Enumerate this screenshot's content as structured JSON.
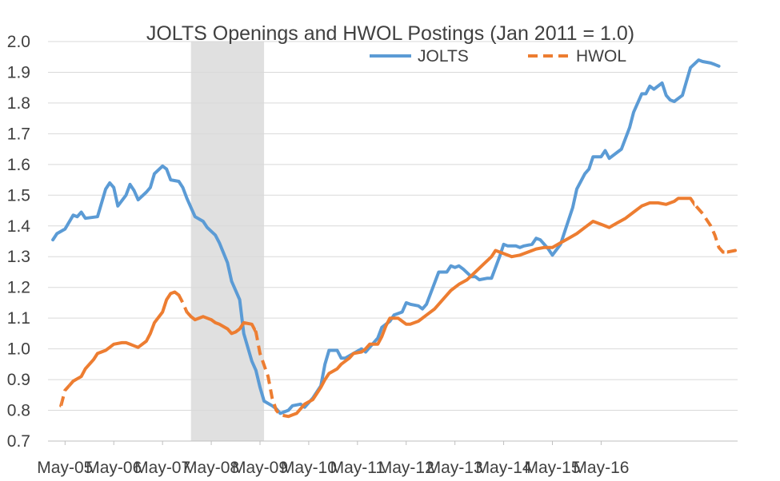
{
  "chart_data": {
    "type": "line",
    "title": "JOLTS Openings and HWOL Postings (Jan 2011 = 1.0)",
    "xlabel": "",
    "ylabel": "",
    "ylim": [
      0.7,
      2.0
    ],
    "y_ticks": [
      "0.7",
      "0.8",
      "0.9",
      "1.0",
      "1.1",
      "1.2",
      "1.3",
      "1.4",
      "1.5",
      "1.6",
      "1.7",
      "1.8",
      "1.9",
      "2.0"
    ],
    "x_tick_labels": [
      "May-05",
      "May-06",
      "May-07",
      "May-08",
      "May-09",
      "May-10",
      "May-11",
      "May-12",
      "May-13",
      "May-14",
      "May-15",
      "May-16"
    ],
    "grid": true,
    "legend_position": "top",
    "shaded_region": {
      "from": "Dec-07",
      "to": "Jun-09",
      "color": "#e0e0e0"
    },
    "series": [
      {
        "name": "JOLTS",
        "color": "#5b9bd5",
        "dash": "solid",
        "points": [
          [
            "Feb-05",
            1.355
          ],
          [
            "Mar-05",
            1.375
          ],
          [
            "May-05",
            1.39
          ],
          [
            "Jul-05",
            1.435
          ],
          [
            "Aug-05",
            1.43
          ],
          [
            "Sep-05",
            1.445
          ],
          [
            "Oct-05",
            1.425
          ],
          [
            "Jan-06",
            1.43
          ],
          [
            "Mar-06",
            1.52
          ],
          [
            "Apr-06",
            1.54
          ],
          [
            "May-06",
            1.525
          ],
          [
            "Jun-06",
            1.465
          ],
          [
            "Aug-06",
            1.5
          ],
          [
            "Sep-06",
            1.535
          ],
          [
            "Oct-06",
            1.515
          ],
          [
            "Nov-06",
            1.485
          ],
          [
            "Jan-07",
            1.51
          ],
          [
            "Feb-07",
            1.525
          ],
          [
            "Mar-07",
            1.57
          ],
          [
            "May-07",
            1.595
          ],
          [
            "Jun-07",
            1.585
          ],
          [
            "Jul-07",
            1.55
          ],
          [
            "Sep-07",
            1.545
          ],
          [
            "Oct-07",
            1.525
          ],
          [
            "Nov-07",
            1.49
          ],
          [
            "Jan-08",
            1.43
          ],
          [
            "Mar-08",
            1.415
          ],
          [
            "Apr-08",
            1.395
          ],
          [
            "Jun-08",
            1.37
          ],
          [
            "Jul-08",
            1.345
          ],
          [
            "Sep-08",
            1.28
          ],
          [
            "Oct-08",
            1.22
          ],
          [
            "Dec-08",
            1.16
          ],
          [
            "Jan-09",
            1.05
          ],
          [
            "Mar-09",
            0.96
          ],
          [
            "Apr-09",
            0.93
          ],
          [
            "May-09",
            0.875
          ],
          [
            "Jun-09",
            0.83
          ],
          [
            "Aug-09",
            0.815
          ],
          [
            "Sep-09",
            0.805
          ],
          [
            "Oct-09",
            0.79
          ],
          [
            "Dec-09",
            0.8
          ],
          [
            "Jan-10",
            0.815
          ],
          [
            "Mar-10",
            0.82
          ],
          [
            "Apr-10",
            0.81
          ],
          [
            "Jun-10",
            0.84
          ],
          [
            "Aug-10",
            0.88
          ],
          [
            "Sep-10",
            0.95
          ],
          [
            "Oct-10",
            0.995
          ],
          [
            "Dec-10",
            0.995
          ],
          [
            "Jan-11",
            0.97
          ],
          [
            "Feb-11",
            0.97
          ],
          [
            "Apr-11",
            0.985
          ],
          [
            "Jun-11",
            1.0
          ],
          [
            "Jul-11",
            0.99
          ],
          [
            "Aug-11",
            1.005
          ],
          [
            "Oct-11",
            1.035
          ],
          [
            "Nov-11",
            1.07
          ],
          [
            "Jan-12",
            1.09
          ],
          [
            "Feb-12",
            1.11
          ],
          [
            "Apr-12",
            1.12
          ],
          [
            "May-12",
            1.15
          ],
          [
            "Jun-12",
            1.145
          ],
          [
            "Aug-12",
            1.14
          ],
          [
            "Sep-12",
            1.13
          ],
          [
            "Oct-12",
            1.145
          ],
          [
            "Nov-12",
            1.18
          ],
          [
            "Jan-13",
            1.25
          ],
          [
            "Mar-13",
            1.25
          ],
          [
            "Apr-13",
            1.27
          ],
          [
            "May-13",
            1.265
          ],
          [
            "Jun-13",
            1.27
          ],
          [
            "Jul-13",
            1.26
          ],
          [
            "Sep-13",
            1.235
          ],
          [
            "Oct-13",
            1.235
          ],
          [
            "Nov-13",
            1.225
          ],
          [
            "Jan-14",
            1.23
          ],
          [
            "Feb-14",
            1.23
          ],
          [
            "Apr-14",
            1.3
          ],
          [
            "May-14",
            1.34
          ],
          [
            "Jun-14",
            1.335
          ],
          [
            "Aug-14",
            1.335
          ],
          [
            "Sep-14",
            1.33
          ],
          [
            "Oct-14",
            1.335
          ],
          [
            "Dec-14",
            1.34
          ],
          [
            "Jan-15",
            1.36
          ],
          [
            "Feb-15",
            1.355
          ],
          [
            "Apr-15",
            1.325
          ],
          [
            "May-15",
            1.305
          ],
          [
            "Jul-15",
            1.34
          ],
          [
            "Aug-15",
            1.38
          ],
          [
            "Oct-15",
            1.46
          ],
          [
            "Nov-15",
            1.52
          ],
          [
            "Jan-16",
            1.57
          ],
          [
            "Feb-16",
            1.585
          ],
          [
            "Mar-16",
            1.625
          ],
          [
            "May-16",
            1.625
          ],
          [
            "Jun-16",
            1.645
          ],
          [
            "Jul-16",
            1.62
          ],
          [
            "Sep-16",
            1.64
          ],
          [
            "Oct-16",
            1.65
          ],
          [
            "Dec-16",
            1.72
          ],
          [
            "Jan-17",
            1.77
          ],
          [
            "Mar-17",
            1.83
          ],
          [
            "Apr-17",
            1.83
          ],
          [
            "May-17",
            1.855
          ],
          [
            "Jun-17",
            1.845
          ],
          [
            "Aug-17",
            1.865
          ],
          [
            "Sep-17",
            1.825
          ],
          [
            "Oct-17",
            1.81
          ],
          [
            "Nov-17",
            1.805
          ],
          [
            "Jan-18",
            1.825
          ],
          [
            "Feb-18",
            1.87
          ],
          [
            "Mar-18",
            1.915
          ],
          [
            "May-18",
            1.94
          ],
          [
            "Jun-18",
            1.935
          ],
          [
            "Aug-18",
            1.93
          ],
          [
            "Sep-18",
            1.925
          ],
          [
            "Oct-18",
            1.92
          ]
        ]
      },
      {
        "name": "HWOL",
        "color": "#ed7d31",
        "dash": "solid",
        "points": [
          [
            "Apr-05",
            0.815
          ],
          [
            "May-05",
            0.865
          ],
          [
            "Jun-05",
            0.88
          ],
          [
            "Jul-05",
            0.895
          ],
          [
            "Sep-05",
            0.91
          ],
          [
            "Oct-05",
            0.935
          ],
          [
            "Dec-05",
            0.965
          ],
          [
            "Jan-06",
            0.985
          ],
          [
            "Mar-06",
            0.995
          ],
          [
            "Apr-06",
            1.005
          ],
          [
            "May-06",
            1.015
          ],
          [
            "Jul-06",
            1.02
          ],
          [
            "Aug-06",
            1.02
          ],
          [
            "Sep-06",
            1.015
          ],
          [
            "Oct-06",
            1.01
          ],
          [
            "Nov-06",
            1.005
          ],
          [
            "Jan-07",
            1.025
          ],
          [
            "Feb-07",
            1.05
          ],
          [
            "Mar-07",
            1.085
          ],
          [
            "May-07",
            1.12
          ],
          [
            "Jun-07",
            1.16
          ],
          [
            "Jul-07",
            1.18
          ],
          [
            "Aug-07",
            1.185
          ],
          [
            "Sep-07",
            1.175
          ],
          [
            "Oct-07",
            1.15
          ],
          [
            "Nov-07",
            1.12
          ],
          [
            "Dec-07",
            1.105
          ],
          [
            "Jan-08",
            1.095
          ],
          [
            "Mar-08",
            1.105
          ],
          [
            "Apr-08",
            1.1
          ],
          [
            "May-08",
            1.095
          ],
          [
            "Jun-08",
            1.085
          ],
          [
            "Jul-08",
            1.08
          ],
          [
            "Sep-08",
            1.065
          ],
          [
            "Oct-08",
            1.05
          ],
          [
            "Nov-08",
            1.055
          ],
          [
            "Dec-08",
            1.065
          ],
          [
            "Jan-09",
            1.085
          ],
          [
            "Mar-09",
            1.08
          ],
          [
            "Apr-09",
            1.055
          ],
          [
            "May-09",
            0.985
          ],
          [
            "Jul-09",
            0.91
          ],
          [
            "Aug-09",
            0.84
          ],
          [
            "Sep-09",
            0.8
          ],
          [
            "Oct-09",
            0.785
          ],
          [
            "Dec-09",
            0.78
          ],
          [
            "Jan-10",
            0.785
          ],
          [
            "Feb-10",
            0.79
          ],
          [
            "Mar-10",
            0.805
          ],
          [
            "Apr-10",
            0.82
          ],
          [
            "Jun-10",
            0.835
          ],
          [
            "Jul-10",
            0.855
          ],
          [
            "Aug-10",
            0.875
          ],
          [
            "Sep-10",
            0.9
          ],
          [
            "Oct-10",
            0.92
          ],
          [
            "Dec-10",
            0.935
          ],
          [
            "Jan-11",
            0.95
          ],
          [
            "Mar-11",
            0.97
          ],
          [
            "Apr-11",
            0.985
          ],
          [
            "Jun-11",
            0.99
          ],
          [
            "Jul-11",
            1.0
          ],
          [
            "Aug-11",
            1.015
          ],
          [
            "Oct-11",
            1.015
          ],
          [
            "Nov-11",
            1.04
          ],
          [
            "Dec-11",
            1.075
          ],
          [
            "Jan-12",
            1.1
          ],
          [
            "Mar-12",
            1.1
          ],
          [
            "Apr-12",
            1.09
          ],
          [
            "May-12",
            1.08
          ],
          [
            "Jun-12",
            1.08
          ],
          [
            "Aug-12",
            1.09
          ],
          [
            "Oct-12",
            1.11
          ],
          [
            "Dec-12",
            1.13
          ],
          [
            "Feb-13",
            1.16
          ],
          [
            "Apr-13",
            1.19
          ],
          [
            "Jun-13",
            1.21
          ],
          [
            "Aug-13",
            1.225
          ],
          [
            "Oct-13",
            1.25
          ],
          [
            "Dec-13",
            1.275
          ],
          [
            "Feb-14",
            1.3
          ],
          [
            "Mar-14",
            1.32
          ],
          [
            "May-14",
            1.31
          ],
          [
            "Jul-14",
            1.3
          ],
          [
            "Sep-14",
            1.305
          ],
          [
            "Nov-14",
            1.315
          ],
          [
            "Jan-15",
            1.325
          ],
          [
            "Mar-15",
            1.33
          ],
          [
            "May-15",
            1.33
          ],
          [
            "Jul-15",
            1.345
          ],
          [
            "Sep-15",
            1.36
          ],
          [
            "Nov-15",
            1.375
          ],
          [
            "Jan-16",
            1.395
          ],
          [
            "Mar-16",
            1.415
          ],
          [
            "May-16",
            1.405
          ],
          [
            "Jul-16",
            1.395
          ],
          [
            "Sep-16",
            1.41
          ],
          [
            "Nov-16",
            1.425
          ],
          [
            "Jan-17",
            1.445
          ],
          [
            "Mar-17",
            1.465
          ],
          [
            "May-17",
            1.475
          ],
          [
            "Jul-17",
            1.475
          ],
          [
            "Sep-17",
            1.47
          ],
          [
            "Nov-17",
            1.48
          ],
          [
            "Dec-17",
            1.49
          ],
          [
            "Jan-18",
            1.49
          ],
          [
            "Mar-18",
            1.49
          ],
          [
            "Apr-18",
            1.47
          ],
          [
            "Jun-18",
            1.44
          ],
          [
            "Aug-18",
            1.4
          ],
          [
            "Sep-18",
            1.37
          ],
          [
            "Oct-18",
            1.33
          ],
          [
            "Nov-18",
            1.315
          ],
          [
            "Dec-18",
            1.315
          ],
          [
            "Feb-19",
            1.32
          ]
        ]
      }
    ],
    "dashed_segments": {
      "HWOL": [
        [
          "Apr-05",
          "Jun-05"
        ],
        [
          "Sep-07",
          "Nov-07"
        ],
        [
          "Apr-09",
          "Dec-09"
        ],
        [
          "Apr-18",
          "Dec-18"
        ]
      ]
    },
    "legend": [
      {
        "label": "JOLTS",
        "color": "#5b9bd5",
        "dash": "solid"
      },
      {
        "label": "HWOL",
        "color": "#ed7d31",
        "dash": "dashed"
      }
    ]
  }
}
